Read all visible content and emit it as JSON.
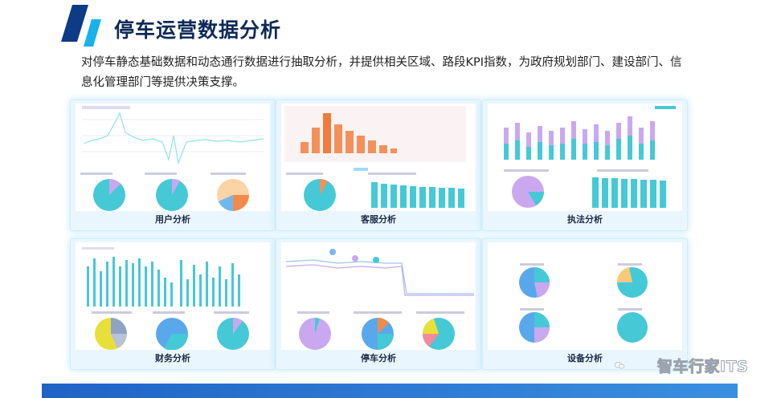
{
  "header": {
    "title": "停车运营数据分析",
    "description": "对停车静态基础数据和动态通行数据进行抽取分析，并提供相关区域、路段KPI指数，为政府规划部门、建设部门、信息化管理部门等提供决策支撑。"
  },
  "panels": [
    {
      "caption": "用户分析"
    },
    {
      "caption": "客服分析"
    },
    {
      "caption": "执法分析"
    },
    {
      "caption": "财务分析"
    },
    {
      "caption": "停车分析"
    },
    {
      "caption": "设备分析"
    }
  ],
  "watermark": {
    "text": "智车行家ITS"
  },
  "colors": {
    "accent_blue": "#1c5fc9",
    "logo_dark": "#0d3b85",
    "logo_light": "#17b2ea",
    "teal": "#3fd1d6",
    "orange": "#f28a49",
    "purple": "#c9a8f0"
  }
}
